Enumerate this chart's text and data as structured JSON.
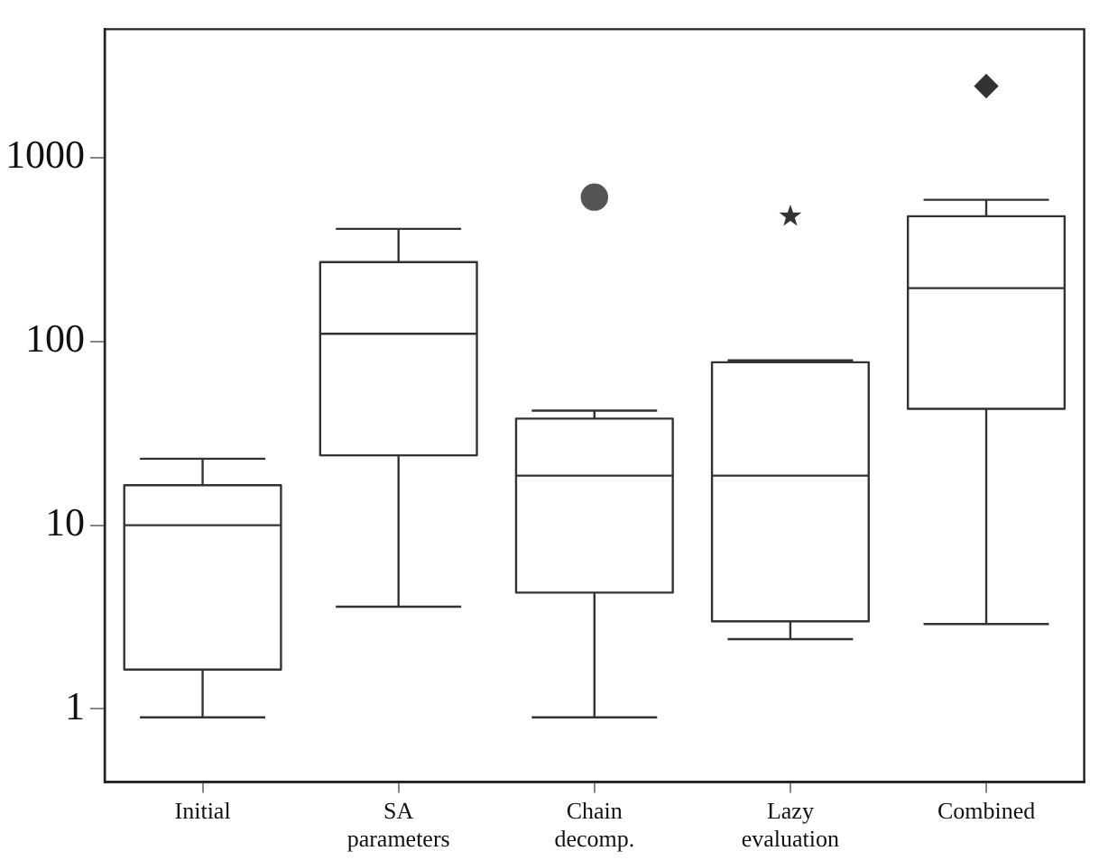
{
  "chart_data": {
    "type": "box",
    "categories": [
      "Initial",
      "SA parameters",
      "Chain decomp.",
      "Lazy evaluation",
      "Combined"
    ],
    "boxes": [
      {
        "low": 0.9,
        "q1": 1.64,
        "median": 10,
        "q3": 16.5,
        "high": 23
      },
      {
        "low": 3.6,
        "q1": 24,
        "median": 110,
        "q3": 270,
        "high": 410
      },
      {
        "low": 0.9,
        "q1": 4.3,
        "median": 18.6,
        "q3": 38,
        "high": 42
      },
      {
        "low": 2.4,
        "q1": 3,
        "median": 18.6,
        "q3": 77,
        "high": 79
      },
      {
        "low": 2.9,
        "q1": 43,
        "median": 195,
        "q3": 480,
        "high": 590
      }
    ],
    "series": [
      {
        "type": "scatter",
        "x": [
          "Chain decomp."
        ],
        "values": [
          610
        ],
        "marker": "circle",
        "color": "#555555"
      },
      {
        "type": "scatter",
        "x": [
          "Lazy evaluation"
        ],
        "values": [
          480
        ],
        "marker": "star",
        "color": "#333333"
      },
      {
        "type": "scatter",
        "x": [
          "Combined"
        ],
        "values": [
          2450
        ],
        "marker": "diamond",
        "color": "#333333"
      }
    ],
    "color": "#333333",
    "log": "y",
    "ylim": [
      0.4,
      5000
    ],
    "yticks": [
      1,
      10,
      100,
      1000
    ],
    "grid": false,
    "legend": false
  }
}
